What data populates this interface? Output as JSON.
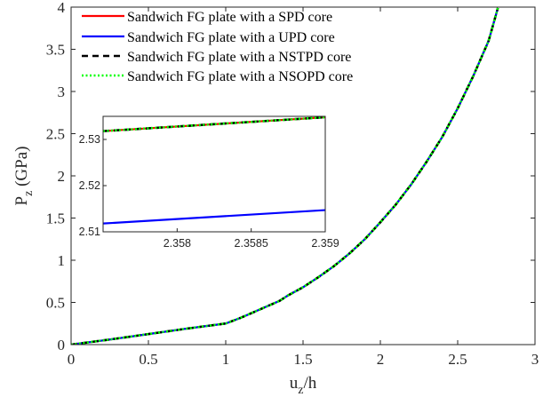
{
  "chart_data": {
    "type": "line",
    "xlabel": {
      "base": "u",
      "sub": "z",
      "suffix": "/h"
    },
    "ylabel": {
      "base": "P",
      "sub": "z",
      "suffix": " (GPa)"
    },
    "xlim": [
      0,
      3
    ],
    "ylim": [
      0,
      4
    ],
    "xticks": [
      0,
      0.5,
      1,
      1.5,
      2,
      2.5,
      3
    ],
    "xtick_labels": [
      "0",
      "0.5",
      "1",
      "1.5",
      "2",
      "2.5",
      "3"
    ],
    "yticks": [
      0,
      0.5,
      1,
      1.5,
      2,
      2.5,
      3,
      3.5,
      4
    ],
    "ytick_labels": [
      "0",
      "0.5",
      "1",
      "1.5",
      "2",
      "2.5",
      "3",
      "3.5",
      "4"
    ],
    "grid": false,
    "legend_position": "top-left",
    "x": [
      0,
      0.25,
      0.5,
      0.75,
      1.0,
      1.1,
      1.2,
      1.3,
      1.35,
      1.4,
      1.5,
      1.6,
      1.7,
      1.8,
      1.9,
      2.0,
      2.1,
      2.2,
      2.3,
      2.4,
      2.5,
      2.6,
      2.7,
      2.76
    ],
    "series": [
      {
        "name": "Sandwich FG plate with a SPD core",
        "color": "#ff0000",
        "style": "solid",
        "y": [
          0,
          0.06,
          0.125,
          0.19,
          0.25,
          0.32,
          0.4,
          0.48,
          0.52,
          0.58,
          0.68,
          0.8,
          0.93,
          1.08,
          1.25,
          1.45,
          1.66,
          1.9,
          2.17,
          2.46,
          2.8,
          3.18,
          3.6,
          3.99
        ]
      },
      {
        "name": "Sandwich FG plate with a UPD core",
        "color": "#0000ff",
        "style": "solid",
        "y": [
          0,
          0.06,
          0.125,
          0.19,
          0.25,
          0.32,
          0.4,
          0.48,
          0.52,
          0.58,
          0.68,
          0.8,
          0.93,
          1.08,
          1.25,
          1.45,
          1.66,
          1.9,
          2.17,
          2.46,
          2.8,
          3.18,
          3.6,
          3.99
        ]
      },
      {
        "name": "Sandwich FG plate with a NSTPD core",
        "color": "#000000",
        "style": "dashed",
        "y": [
          0,
          0.06,
          0.125,
          0.19,
          0.25,
          0.32,
          0.4,
          0.48,
          0.52,
          0.58,
          0.68,
          0.8,
          0.93,
          1.08,
          1.25,
          1.45,
          1.66,
          1.9,
          2.17,
          2.46,
          2.8,
          3.18,
          3.6,
          3.99
        ]
      },
      {
        "name": "Sandwich FG plate with a NSOPD core",
        "color": "#00ff00",
        "style": "dotted",
        "y": [
          0,
          0.06,
          0.125,
          0.19,
          0.25,
          0.32,
          0.4,
          0.48,
          0.52,
          0.58,
          0.68,
          0.8,
          0.93,
          1.08,
          1.25,
          1.45,
          1.66,
          1.9,
          2.17,
          2.46,
          2.8,
          3.18,
          3.6,
          3.99
        ]
      }
    ],
    "inset": {
      "xlim": [
        2.3575,
        2.359
      ],
      "ylim": [
        2.51,
        2.535
      ],
      "xticks": [
        2.358,
        2.3585,
        2.359
      ],
      "xtick_labels": [
        "2.358",
        "2.3585",
        "2.359"
      ],
      "yticks": [
        2.51,
        2.52,
        2.53
      ],
      "ytick_labels": [
        "2.51",
        "2.52",
        "2.53"
      ],
      "x": [
        2.3575,
        2.359
      ],
      "series": [
        {
          "ref": 0,
          "y": [
            2.5318,
            2.5348
          ]
        },
        {
          "ref": 1,
          "y": [
            2.5118,
            2.5147
          ]
        },
        {
          "ref": 2,
          "y": [
            2.5318,
            2.5348
          ]
        },
        {
          "ref": 3,
          "y": [
            2.5318,
            2.5348
          ]
        }
      ]
    }
  }
}
